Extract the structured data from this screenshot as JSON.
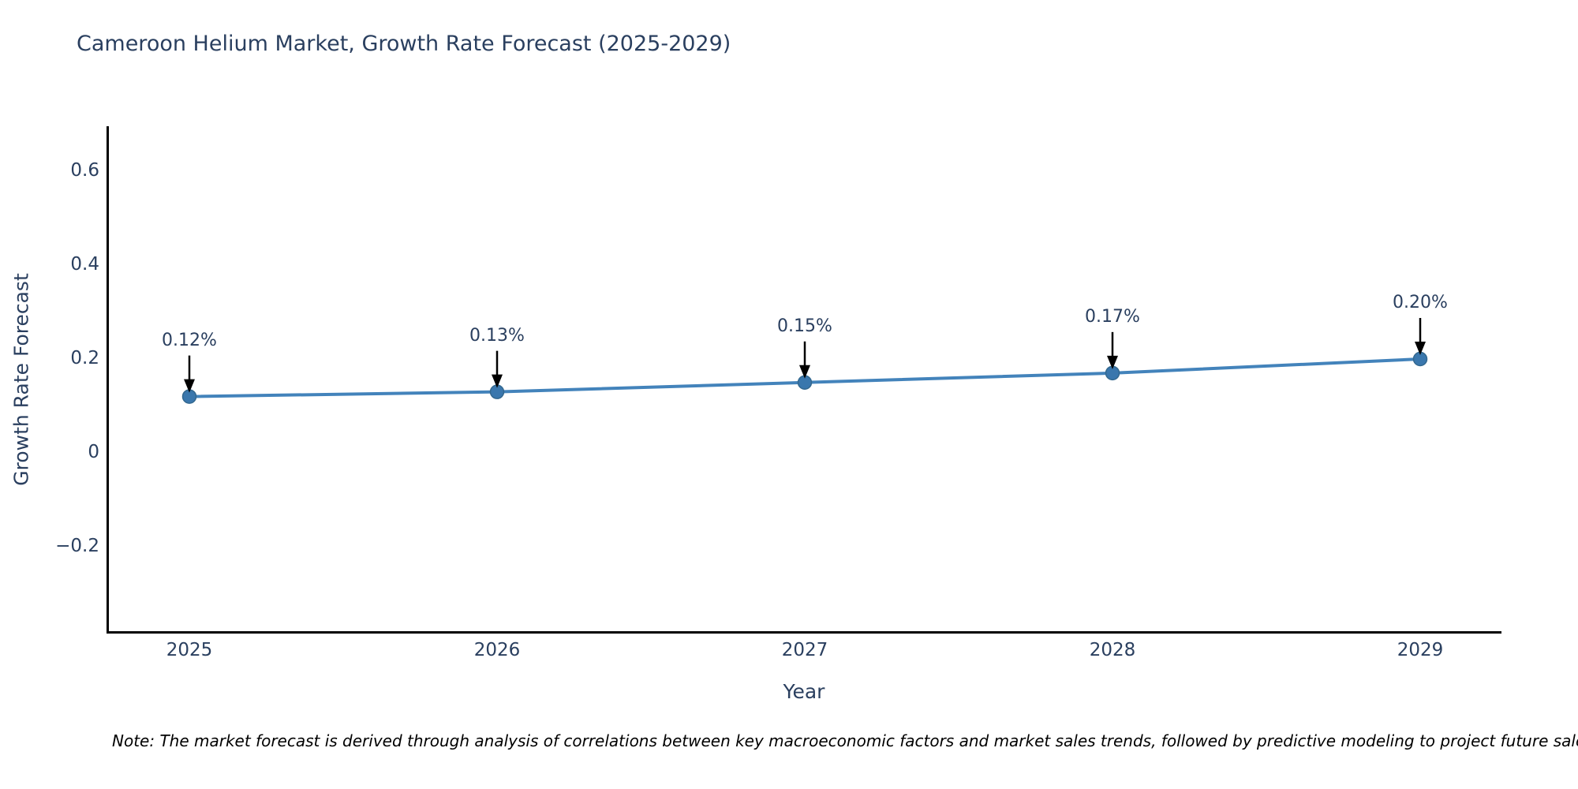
{
  "chart_data": {
    "type": "line",
    "title": "Cameroon Helium Market, Growth Rate Forecast (2025-2029)",
    "xlabel": "Year",
    "ylabel": "Growth Rate Forecast",
    "categories": [
      "2025",
      "2026",
      "2027",
      "2028",
      "2029"
    ],
    "values": [
      0.12,
      0.13,
      0.15,
      0.17,
      0.2
    ],
    "point_labels": [
      "0.12%",
      "0.13%",
      "0.15%",
      "0.17%",
      "0.20%"
    ],
    "ytick_values": [
      0.6,
      0.4,
      0.2,
      0,
      -0.2
    ],
    "ytick_labels": [
      "0.6",
      "0.4",
      "0.2",
      "0",
      "−0.2"
    ],
    "xlim": [
      2024.74,
      2029.26
    ],
    "ylim": [
      -0.38,
      0.7
    ],
    "grid": false,
    "legend": false,
    "note": "Note: The market forecast is derived through analysis of correlations between key macroeconomic factors and market sales trends, followed by predictive modeling to project future sales."
  },
  "colors": {
    "line": "#4383bb",
    "marker": "#3a77ad",
    "marker_edge": "#33688f",
    "arrow": "#000000",
    "axis": "#000000",
    "text": "#2a3f5f",
    "background": "#ffffff"
  }
}
